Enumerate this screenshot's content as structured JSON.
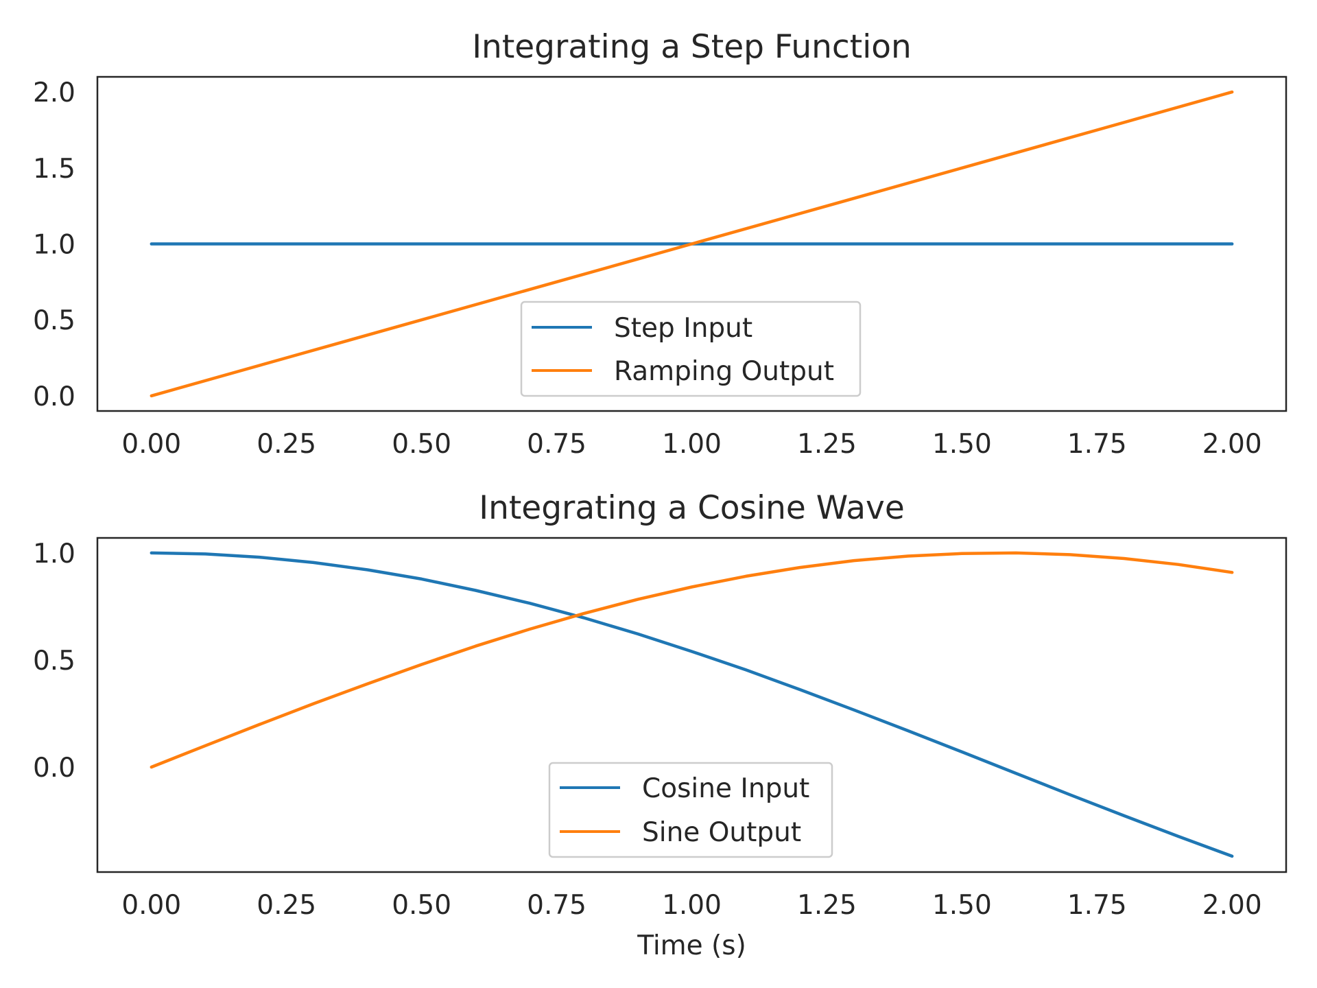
{
  "chart_data": [
    {
      "type": "line",
      "title": "Integrating a Step Function",
      "xlabel": "",
      "ylabel": "",
      "xlim": [
        -0.1,
        2.1
      ],
      "ylim": [
        -0.1,
        2.1
      ],
      "xticks": [
        0,
        0.25,
        0.5,
        0.75,
        1.0,
        1.25,
        1.5,
        1.75,
        2.0
      ],
      "xtick_labels": [
        "0.00",
        "0.25",
        "0.50",
        "0.75",
        "1.00",
        "1.25",
        "1.50",
        "1.75",
        "2.00"
      ],
      "yticks": [
        0,
        0.5,
        1.0,
        1.5,
        2.0
      ],
      "ytick_labels": [
        "0.0",
        "0.5",
        "1.0",
        "1.5",
        "2.0"
      ],
      "grid": false,
      "legend_position": "bottom-center",
      "x": [
        0,
        0.25,
        0.5,
        0.75,
        1.0,
        1.25,
        1.5,
        1.75,
        2.0
      ],
      "series": [
        {
          "name": "Step Input",
          "color": "#1f77b4",
          "values": [
            1,
            1,
            1,
            1,
            1,
            1,
            1,
            1,
            1
          ]
        },
        {
          "name": "Ramping Output",
          "color": "#ff7f0e",
          "values": [
            0,
            0.25,
            0.5,
            0.75,
            1.0,
            1.25,
            1.5,
            1.75,
            2.0
          ]
        }
      ]
    },
    {
      "type": "line",
      "title": "Integrating a Cosine Wave",
      "xlabel": "Time (s)",
      "ylabel": "",
      "xlim": [
        -0.1,
        2.1
      ],
      "ylim": [
        -0.49,
        1.07
      ],
      "xticks": [
        0,
        0.25,
        0.5,
        0.75,
        1.0,
        1.25,
        1.5,
        1.75,
        2.0
      ],
      "xtick_labels": [
        "0.00",
        "0.25",
        "0.50",
        "0.75",
        "1.00",
        "1.25",
        "1.50",
        "1.75",
        "2.00"
      ],
      "yticks": [
        0,
        0.5,
        1.0
      ],
      "ytick_labels": [
        "0.0",
        "0.5",
        "1.0"
      ],
      "grid": false,
      "legend_position": "bottom-center",
      "x": [
        0,
        0.1,
        0.2,
        0.3,
        0.4,
        0.5,
        0.6,
        0.7,
        0.8,
        0.9,
        1.0,
        1.1,
        1.2,
        1.3,
        1.4,
        1.5,
        1.6,
        1.7,
        1.8,
        1.9,
        2.0
      ],
      "series": [
        {
          "name": "Cosine Input",
          "color": "#1f77b4",
          "values": [
            1.0,
            0.995,
            0.98,
            0.955,
            0.921,
            0.878,
            0.825,
            0.765,
            0.697,
            0.622,
            0.54,
            0.454,
            0.362,
            0.267,
            0.17,
            0.071,
            -0.029,
            -0.129,
            -0.227,
            -0.323,
            -0.416
          ]
        },
        {
          "name": "Sine Output",
          "color": "#ff7f0e",
          "values": [
            0.0,
            0.1,
            0.199,
            0.296,
            0.389,
            0.479,
            0.565,
            0.644,
            0.717,
            0.783,
            0.841,
            0.891,
            0.932,
            0.964,
            0.985,
            0.997,
            1.0,
            0.992,
            0.974,
            0.946,
            0.909
          ]
        }
      ]
    }
  ]
}
